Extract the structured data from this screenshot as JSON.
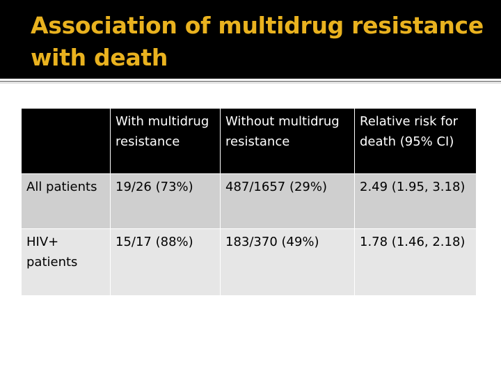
{
  "slide": {
    "title": "Association of multidrug resistance with death"
  },
  "table": {
    "headers": [
      "",
      "With multidrug resistance",
      "Without multidrug resistance",
      "Relative risk for death (95% CI)"
    ],
    "rows": [
      [
        "All patients",
        "19/26 (73%)",
        "487/1657 (29%)",
        "2.49 (1.95, 3.18)"
      ],
      [
        "HIV+ patients",
        "15/17 (88%)",
        "183/370 (49%)",
        "1.78 (1.46, 2.18)"
      ]
    ]
  },
  "colors": {
    "title_bar_bg": "#000000",
    "title_text": "#e9b21f",
    "header_bg": "#000000",
    "row_1_bg": "#cfcfcf",
    "row_2_bg": "#e6e6e6"
  }
}
